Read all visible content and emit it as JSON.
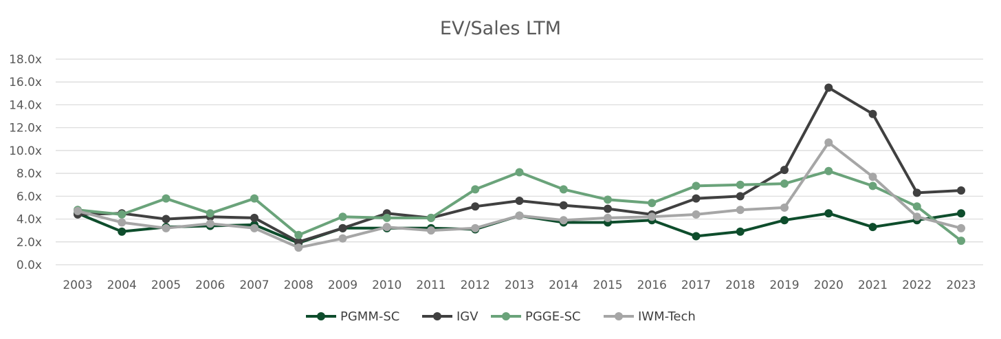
{
  "chart_data": {
    "type": "line",
    "title": "EV/Sales LTM",
    "xlabel": "",
    "ylabel": "",
    "categories": [
      "2003",
      "2004",
      "2005",
      "2006",
      "2007",
      "2008",
      "2009",
      "2010",
      "2011",
      "2012",
      "2013",
      "2014",
      "2015",
      "2016",
      "2017",
      "2018",
      "2019",
      "2020",
      "2021",
      "2022",
      "2023"
    ],
    "ylim": [
      0,
      18
    ],
    "yticks": [
      "0.0x",
      "2.0x",
      "4.0x",
      "6.0x",
      "8.0x",
      "10.0x",
      "12.0x",
      "14.0x",
      "16.0x",
      "18.0x"
    ],
    "grid": true,
    "legend_position": "bottom",
    "series": [
      {
        "name": "PGMM-SC",
        "color": "#0e4d2c",
        "values": [
          4.5,
          2.9,
          3.3,
          3.4,
          3.5,
          1.9,
          3.2,
          3.2,
          3.2,
          3.1,
          4.3,
          3.7,
          3.7,
          3.9,
          2.5,
          2.9,
          3.9,
          4.5,
          3.3,
          3.9,
          4.5
        ]
      },
      {
        "name": "IGV",
        "color": "#404040",
        "values": [
          4.4,
          4.5,
          4.0,
          4.2,
          4.1,
          2.0,
          3.2,
          4.5,
          4.1,
          5.1,
          5.6,
          5.2,
          4.9,
          4.4,
          5.8,
          6.0,
          8.3,
          15.5,
          13.2,
          6.3,
          6.5
        ]
      },
      {
        "name": "PGGE-SC",
        "color": "#6aa37a",
        "values": [
          4.8,
          4.4,
          5.8,
          4.5,
          5.8,
          2.6,
          4.2,
          4.1,
          4.1,
          6.6,
          8.1,
          6.6,
          5.7,
          5.4,
          6.9,
          7.0,
          7.1,
          8.2,
          6.9,
          5.1,
          2.1
        ]
      },
      {
        "name": "IWM-Tech",
        "color": "#a6a6a6",
        "values": [
          4.7,
          3.7,
          3.2,
          3.6,
          3.2,
          1.5,
          2.3,
          3.3,
          3.0,
          3.2,
          4.3,
          3.9,
          4.1,
          4.2,
          4.4,
          4.8,
          5.0,
          10.7,
          7.7,
          4.2,
          3.2
        ]
      }
    ]
  }
}
